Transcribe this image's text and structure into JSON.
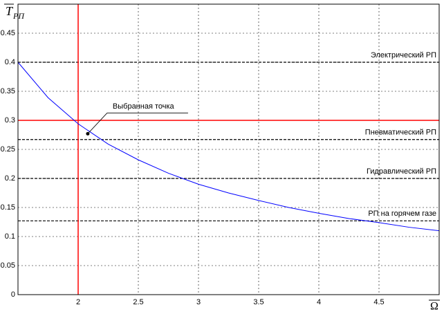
{
  "chart_data": {
    "type": "line",
    "x": [
      1.5,
      1.75,
      2,
      2.25,
      2.5,
      2.75,
      3,
      3.25,
      3.5,
      3.75,
      4,
      4.25,
      4.5,
      4.75,
      5
    ],
    "values": [
      0.4,
      0.339,
      0.294,
      0.259,
      0.232,
      0.209,
      0.19,
      0.175,
      0.162,
      0.15,
      0.14,
      0.131,
      0.124,
      0.116,
      0.11
    ],
    "color": "#0000ff",
    "xlim": [
      1.5,
      5
    ],
    "ylim": [
      0,
      0.5
    ],
    "xticks": [
      2,
      2.5,
      3,
      3.5,
      4,
      4.5
    ],
    "yticks": [
      0,
      0.05,
      0.1,
      0.15,
      0.2,
      0.25,
      0.3,
      0.35,
      0.4,
      0.45
    ],
    "grid": true,
    "y_label": "T",
    "y_label_subscript": "РП",
    "x_label": "Ω",
    "reference_lines": [
      {
        "value": 0.4,
        "label": "Электрический РП"
      },
      {
        "value": 0.267,
        "label": "Пневматический РП"
      },
      {
        "value": 0.2,
        "label": "Гидравлический РП"
      },
      {
        "value": 0.127,
        "label": "РП на горячем газе"
      }
    ],
    "selected_x": 2,
    "selected_y": 0.3,
    "selected_color": "#ff0000",
    "point": {
      "x": 2.08,
      "y": 0.277,
      "label": "Выбранная точка"
    }
  }
}
